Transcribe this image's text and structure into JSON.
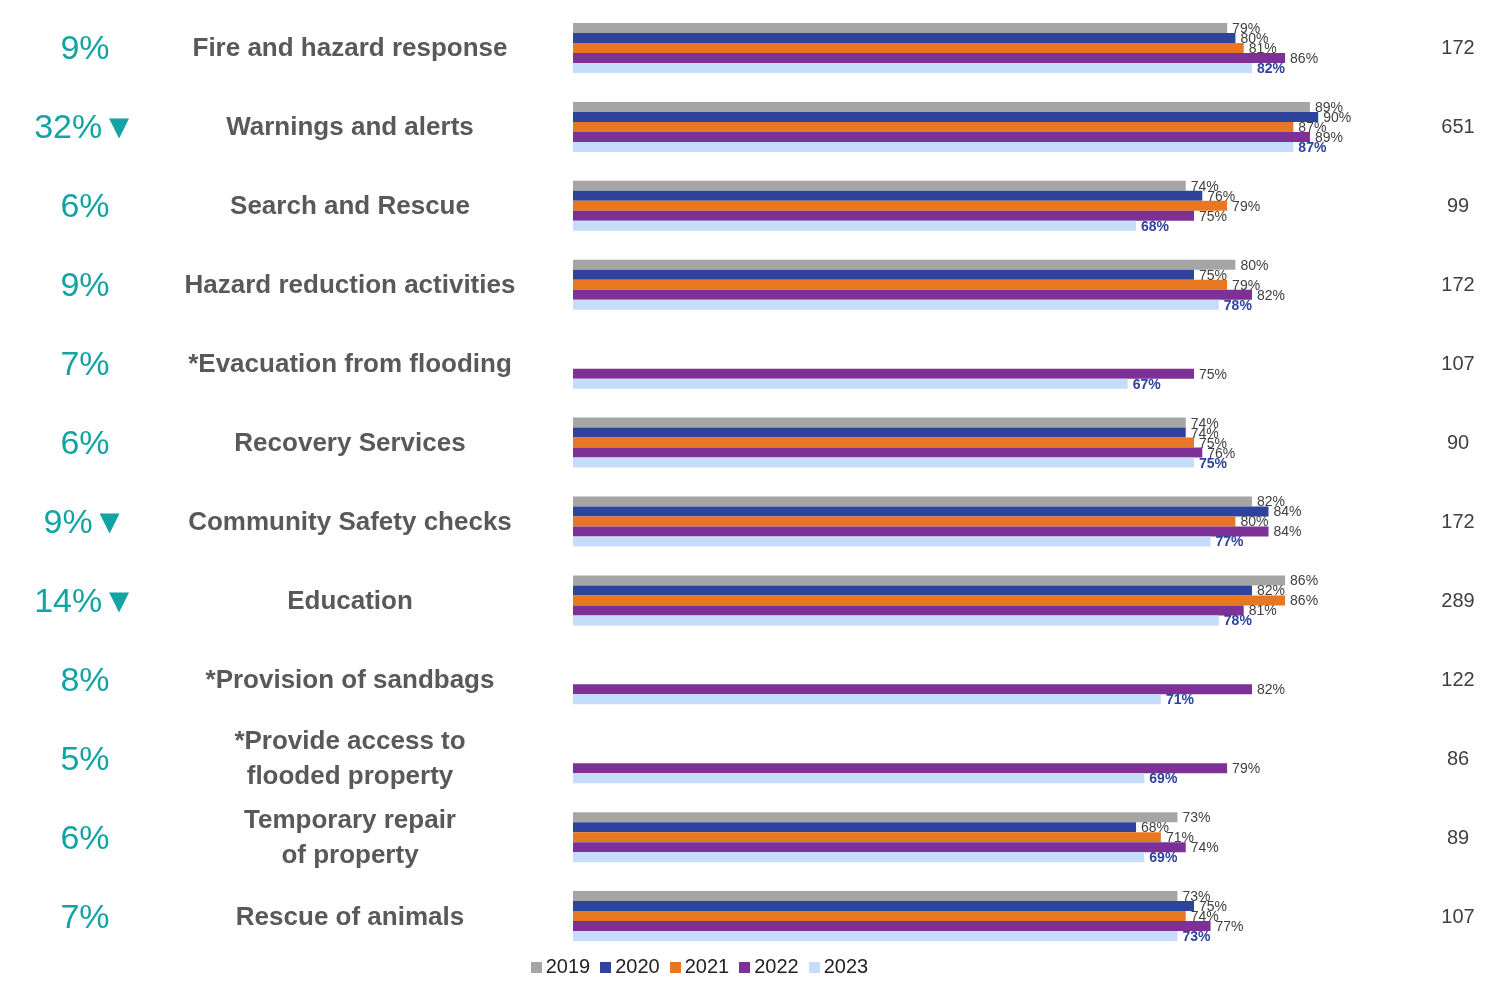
{
  "chart_data": {
    "type": "bar",
    "orientation": "horizontal",
    "categories": [
      "Fire and hazard response",
      "Warnings and alerts",
      "Search and Rescue",
      "Hazard reduction activities",
      "*Evacuation from flooding",
      "Recovery Services",
      "Community Safety checks",
      "Education",
      "*Provision of sandbags",
      "*Provide access to flooded property",
      "Temporary repair of property",
      "Rescue of animals"
    ],
    "series": [
      {
        "name": "2019",
        "color": "#a5a5a5",
        "values": [
          79,
          89,
          74,
          80,
          null,
          74,
          82,
          86,
          null,
          null,
          73,
          73
        ],
        "value_labels": [
          "79%",
          "89%",
          "74%",
          "80%",
          null,
          "74%",
          "82%",
          "86%",
          null,
          null,
          "73%",
          "73%"
        ]
      },
      {
        "name": "2020",
        "color": "#2e439c",
        "values": [
          80,
          90,
          76,
          75,
          null,
          74,
          84,
          82,
          null,
          null,
          68,
          75
        ],
        "value_labels": [
          "80%",
          "90%",
          "76%",
          "75%",
          null,
          "74%",
          "84%",
          "82%",
          null,
          null,
          "68%",
          "75%"
        ]
      },
      {
        "name": "2021",
        "color": "#e87722",
        "values": [
          81,
          87,
          79,
          79,
          null,
          75,
          80,
          86,
          null,
          null,
          71,
          74
        ],
        "value_labels": [
          "81%",
          "87%",
          "79%",
          "79%",
          null,
          "75%",
          "80%",
          "86%",
          null,
          null,
          "71%",
          "74%"
        ]
      },
      {
        "name": "2022",
        "color": "#7d3096",
        "values": [
          86,
          89,
          75,
          82,
          75,
          76,
          84,
          81,
          82,
          79,
          74,
          77
        ],
        "value_labels": [
          "86%",
          "89%",
          "75%",
          "82%",
          "75%",
          "76%",
          "84%",
          "81%",
          "82%",
          "79%",
          "74%",
          "77%"
        ]
      },
      {
        "name": "2023",
        "color": "#c5ddfa",
        "values": [
          82,
          87,
          68,
          78,
          67,
          75,
          77,
          78,
          71,
          69,
          69,
          73
        ],
        "value_labels": [
          "82%",
          "87%",
          "68%",
          "78%",
          "67%",
          "75%",
          "77%",
          "78%",
          "71%",
          "69%",
          "69%",
          "73%"
        ]
      }
    ],
    "tick_labels": "y",
    "legend": "bottom",
    "annotations": [
      "9%",
      "172",
      "32%▼",
      "651",
      "6%",
      "99",
      "9%",
      "172",
      "7%",
      "107",
      "6%",
      "90",
      "9%▼",
      "172",
      "14%▼",
      "289",
      "8%",
      "122",
      "5%",
      "86",
      "6%",
      "89",
      "7%",
      "107"
    ]
  }
}
